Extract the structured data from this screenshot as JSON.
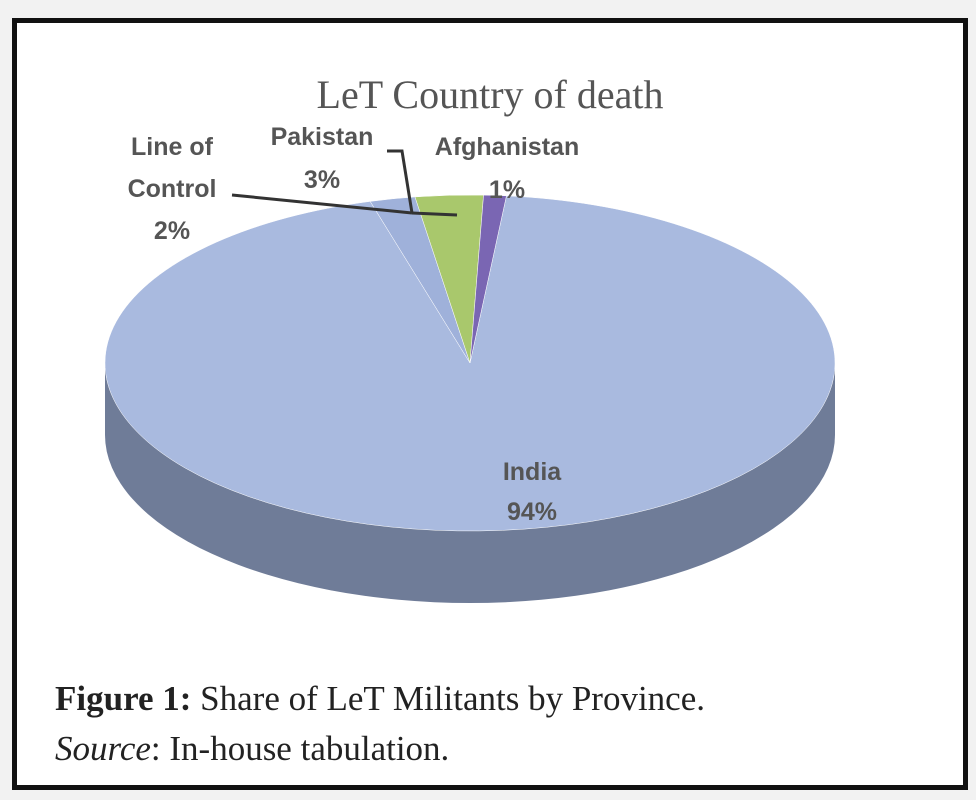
{
  "chart_data": {
    "type": "pie3d",
    "title": "LeT Country of death",
    "categories": [
      "India",
      "Line of Control",
      "Pakistan",
      "Afghanistan"
    ],
    "values": [
      94,
      2,
      3,
      1
    ],
    "value_labels": [
      "94%",
      "2%",
      "3%",
      "1%"
    ],
    "colors": [
      "#a9badf",
      "#9fb1da",
      "#a9c86c",
      "#7a66b3"
    ],
    "caption": {
      "label": "Figure 1:",
      "text": "Share of LeT Militants by Province.",
      "source_label": "Source",
      "source_text": ": In-house tabulation."
    }
  }
}
